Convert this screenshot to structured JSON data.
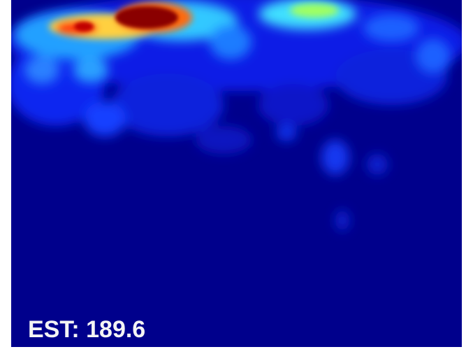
{
  "caption": {
    "text": "EST: 189.6"
  }
}
